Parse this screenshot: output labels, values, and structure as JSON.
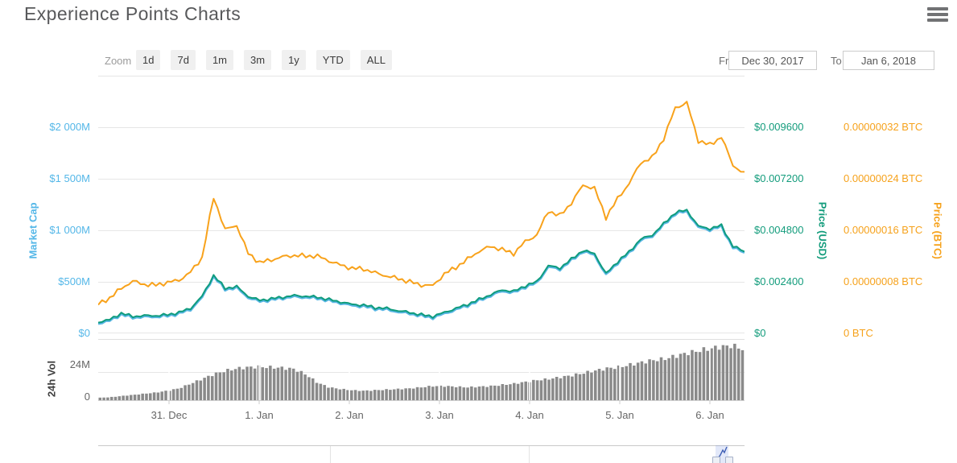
{
  "page": {
    "title": "Experience Points Charts"
  },
  "controls": {
    "zoom_label": "Zoom",
    "zoom_buttons": [
      "1d",
      "7d",
      "1m",
      "3m",
      "1y",
      "YTD",
      "ALL"
    ],
    "from_label": "From",
    "from_value": "Dec 30, 2017",
    "to_label": "To",
    "to_value": "Jan 6, 2018"
  },
  "icons": {
    "menu": "hamburger-icon"
  },
  "colors": {
    "market_cap": "#58b6e4",
    "price_usd": "#0f9c7d",
    "price_btc": "#f8a21b",
    "grid": "#e6e6e6",
    "volume_bar": "#8a8a8a",
    "title_text": "#58595b",
    "navigator_selection": "#4c6edb"
  },
  "chart_data": {
    "type": "line",
    "subcharts": "price/marketcap pane + volume bar pane + range navigator",
    "x_unit": "hours from start (Dec 30, 2017)",
    "x_start_hour": 0,
    "x_step_hours": 3,
    "x": [
      0,
      3,
      6,
      9,
      12,
      15,
      18,
      21,
      24,
      27,
      30,
      33,
      36,
      39,
      42,
      45,
      48,
      51,
      54,
      57,
      60,
      63,
      66,
      69,
      72,
      75,
      78,
      81,
      84,
      87,
      90,
      93,
      96,
      99,
      102,
      105,
      108,
      111,
      114,
      117,
      120,
      123,
      126,
      129,
      132,
      135,
      138,
      141,
      144,
      147,
      150,
      153,
      156,
      159,
      162,
      165,
      168
    ],
    "x_axis": {
      "tick_labels": [
        "31. Dec",
        "1. Jan",
        "2. Jan",
        "3. Jan",
        "4. Jan",
        "5. Jan",
        "6. Jan"
      ]
    },
    "axes": {
      "market_cap": {
        "title": "Market Cap",
        "side": "left",
        "ticks": [
          "$2 000M",
          "$1 500M",
          "$1 000M",
          "$500M",
          "$0"
        ],
        "range_musd": [
          0,
          2500
        ],
        "grid": true
      },
      "price_usd": {
        "title": "Price (USD)",
        "side": "right",
        "ticks": [
          "$0.009600",
          "$0.007200",
          "$0.004800",
          "$0.002400",
          "$0"
        ],
        "range_usd": [
          0,
          0.012
        ]
      },
      "price_btc": {
        "title": "Price (BTC)",
        "side": "far-right",
        "ticks": [
          "0.00000032 BTC",
          "0.00000024 BTC",
          "0.00000016 BTC",
          "0.00000008 BTC",
          "0 BTC"
        ],
        "range_btc": [
          0,
          4e-07
        ]
      },
      "volume": {
        "title": "24h Vol",
        "ticks": [
          "24M",
          "0"
        ],
        "range_musd": [
          0,
          52
        ]
      }
    },
    "series": [
      {
        "name": "Market Cap",
        "axis": "market_cap",
        "color": "#58b6e4",
        "unit": "USD millions",
        "values": [
          109,
          133,
          195,
          164,
          172,
          172,
          180,
          203,
          242,
          359,
          563,
          438,
          453,
          359,
          320,
          336,
          352,
          367,
          359,
          352,
          328,
          305,
          281,
          273,
          250,
          242,
          219,
          203,
          180,
          164,
          203,
          242,
          281,
          328,
          375,
          422,
          406,
          461,
          500,
          656,
          633,
          719,
          805,
          773,
          578,
          695,
          789,
          914,
          953,
          1063,
          1172,
          1195,
          1039,
          1016,
          1047,
          844,
          797
        ]
      },
      {
        "name": "Price (USD)",
        "axis": "price_usd",
        "color": "#0f9c7d",
        "unit": "USD",
        "values": [
          0.000525,
          0.000638,
          0.000938,
          0.000788,
          0.000825,
          0.000825,
          0.000863,
          0.000975,
          0.001163,
          0.001725,
          0.0027,
          0.0021,
          0.002175,
          0.001725,
          0.001538,
          0.001613,
          0.001688,
          0.001763,
          0.001725,
          0.001688,
          0.001575,
          0.001463,
          0.00135,
          0.001313,
          0.0012,
          0.001163,
          0.00105,
          0.000975,
          0.000863,
          0.000788,
          0.000975,
          0.001163,
          0.00135,
          0.001575,
          0.0018,
          0.002025,
          0.00195,
          0.002213,
          0.0024,
          0.00315,
          0.003038,
          0.00345,
          0.003863,
          0.003713,
          0.002775,
          0.003338,
          0.003788,
          0.004388,
          0.004575,
          0.0051,
          0.005625,
          0.005738,
          0.004988,
          0.004875,
          0.005025,
          0.00405,
          0.003825
        ]
      },
      {
        "name": "Price (BTC)",
        "axis": "price_btc",
        "color": "#f8a21b",
        "unit": "1e-8 BTC (satoshi)",
        "values": [
          4.5,
          5.5,
          7,
          8.1,
          7.6,
          7.5,
          7.9,
          8.25,
          9.5,
          11.75,
          21.1,
          16.1,
          16.75,
          12.4,
          11,
          11.4,
          11.9,
          12.1,
          12,
          12,
          11.25,
          10.6,
          10.1,
          10,
          9.4,
          8.9,
          8.5,
          8,
          7.5,
          7.4,
          9.25,
          10.25,
          11.5,
          12.75,
          13.5,
          13,
          12.4,
          14.25,
          15.25,
          19,
          18.25,
          20.25,
          23,
          22.5,
          18,
          20.9,
          23.25,
          26.5,
          27.25,
          30.25,
          35,
          35.8,
          29.9,
          29.25,
          30.5,
          26.1,
          24.75
        ]
      }
    ],
    "volume": {
      "name": "24h Vol",
      "color": "#8a8a8a",
      "unit": "USD millions",
      "values": [
        2,
        2.5,
        3.5,
        4.5,
        5.5,
        6.5,
        8,
        10,
        14,
        18,
        22,
        25,
        27,
        28,
        28.5,
        28,
        27.5,
        26.5,
        22,
        15,
        11,
        9.5,
        8.5,
        8,
        8.5,
        9,
        9.5,
        10,
        11,
        12,
        12,
        11.5,
        11,
        11.5,
        12,
        13,
        14,
        15.5,
        17,
        18,
        19.5,
        21,
        23,
        25,
        27,
        28,
        30,
        32,
        34,
        35,
        37.5,
        40,
        42,
        44,
        45.5,
        46.5,
        43
      ]
    },
    "legend": "none",
    "grid_on": true
  }
}
